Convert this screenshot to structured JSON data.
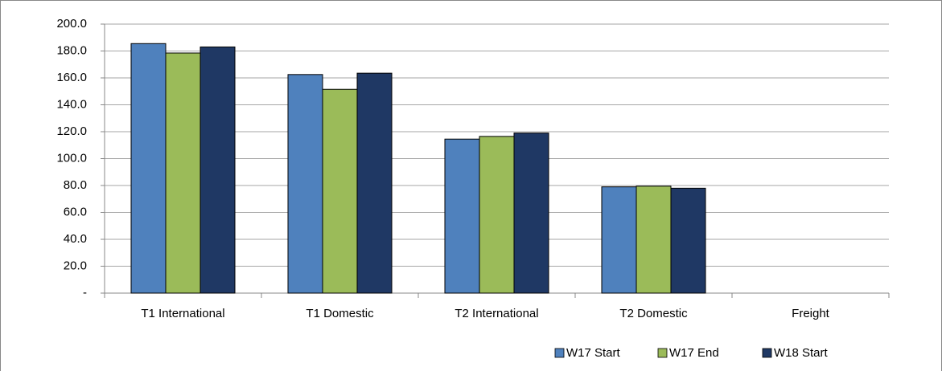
{
  "chart_data": {
    "type": "bar",
    "categories": [
      "T1 International",
      "T1 Domestic",
      "T2 International",
      "T2 Domestic",
      "Freight"
    ],
    "series": [
      {
        "name": "W17 Start",
        "color": "#4f81bd",
        "values": [
          185.5,
          162.5,
          114.5,
          79,
          null
        ]
      },
      {
        "name": "W17 End",
        "color": "#9bbb59",
        "values": [
          178.5,
          151.5,
          116.5,
          79.5,
          null
        ]
      },
      {
        "name": "W18 Start",
        "color": "#1f3864",
        "values": [
          183,
          163.5,
          119,
          78,
          null
        ]
      }
    ],
    "ylim": [
      0,
      200
    ],
    "yticks": [
      {
        "value": 0,
        "label": "-"
      },
      {
        "value": 20,
        "label": "20.0"
      },
      {
        "value": 40,
        "label": "40.0"
      },
      {
        "value": 60,
        "label": "60.0"
      },
      {
        "value": 80,
        "label": "80.0"
      },
      {
        "value": 100,
        "label": "100.0"
      },
      {
        "value": 120,
        "label": "120.0"
      },
      {
        "value": 140,
        "label": "140.0"
      },
      {
        "value": 160,
        "label": "160.0"
      },
      {
        "value": 180,
        "label": "180.0"
      },
      {
        "value": 200,
        "label": "200.0"
      }
    ],
    "grid": true,
    "legend": "bottom-right"
  }
}
